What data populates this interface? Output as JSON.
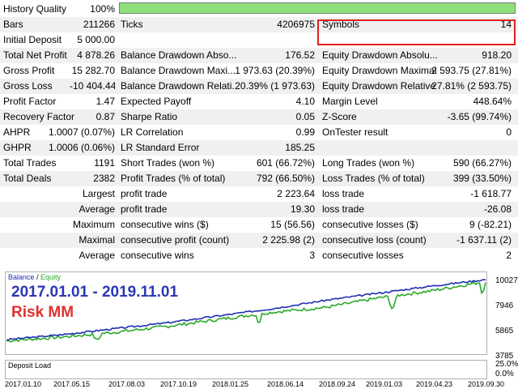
{
  "history_quality": {
    "label": "History Quality",
    "value": "100%",
    "fill": 1.0
  },
  "rows": [
    {
      "c": [
        "Bars",
        "211266",
        "Ticks",
        "4206975",
        "Symbols",
        "14"
      ]
    },
    {
      "c": [
        "Initial Deposit",
        "5 000.00",
        "",
        "",
        "",
        ""
      ]
    },
    {
      "c": [
        "Total Net Profit",
        "4 878.26",
        "Balance Drawdown Abso...",
        "176.52",
        "Equity Drawdown Absolu...",
        "918.20"
      ]
    },
    {
      "c": [
        "Gross Profit",
        "15 282.70",
        "Balance Drawdown Maxi...",
        "1 973.63 (20.39%)",
        "Equity Drawdown Maximal",
        "2 593.75 (27.81%)"
      ]
    },
    {
      "c": [
        "Gross Loss",
        "-10 404.44",
        "Balance Drawdown Relati...",
        "20.39% (1 973.63)",
        "Equity Drawdown Relative",
        "27.81% (2 593.75)"
      ]
    },
    {
      "c": [
        "Profit Factor",
        "1.47",
        "Expected Payoff",
        "4.10",
        "Margin Level",
        "448.64%"
      ]
    },
    {
      "c": [
        "Recovery Factor",
        "0.87",
        "Sharpe Ratio",
        "0.05",
        "Z-Score",
        "-3.65 (99.74%)"
      ]
    },
    {
      "c": [
        "AHPR",
        "1.0007 (0.07%)",
        "LR Correlation",
        "0.99",
        "OnTester result",
        "0"
      ]
    },
    {
      "c": [
        "GHPR",
        "1.0006 (0.06%)",
        "LR Standard Error",
        "185.25",
        "",
        ""
      ]
    },
    {
      "c": [
        "Total Trades",
        "1191",
        "Short Trades (won %)",
        "601 (66.72%)",
        "Long Trades (won %)",
        "590 (66.27%)"
      ]
    },
    {
      "c": [
        "Total Deals",
        "2382",
        "Profit Trades (% of total)",
        "792 (66.50%)",
        "Loss Trades (% of total)",
        "399 (33.50%)"
      ]
    },
    {
      "c": [
        "Largest",
        "",
        "profit trade",
        "2 223.64",
        "loss trade",
        "-1 618.77"
      ]
    },
    {
      "c": [
        "Average",
        "",
        "profit trade",
        "19.30",
        "loss trade",
        "-26.08"
      ]
    },
    {
      "c": [
        "Maximum",
        "",
        "consecutive wins ($)",
        "15 (56.56)",
        "consecutive losses ($)",
        "9 (-82.21)"
      ]
    },
    {
      "c": [
        "Maximal",
        "",
        "consecutive profit (count)",
        "2 225.98 (2)",
        "consecutive loss (count)",
        "-1 637.11 (2)"
      ]
    },
    {
      "c": [
        "Average",
        "",
        "consecutive wins",
        "3",
        "consecutive losses",
        "2"
      ]
    }
  ],
  "chart": {
    "legend_balance": "Balance",
    "legend_sep": " / ",
    "legend_equity": "Equity",
    "overlay_period": "2017.01.01 - 2019.11.01",
    "overlay_mode": "Risk MM",
    "y_ticks": [
      "10027",
      "7946",
      "5865",
      "3785"
    ],
    "deposit_label": "Deposit Load",
    "deposit_ticks": [
      "25.0%",
      "0.0%"
    ],
    "x_ticks": [
      "2017.01.10",
      "2017.05.15",
      "2017.08.03",
      "2017.10.19",
      "2018.01.25",
      "2018.06.14",
      "2018.09.24",
      "2019.01.03",
      "2019.04.23",
      "2019.09.30"
    ],
    "colors": {
      "balance": "#1f2fb0",
      "equity": "#2aa82a",
      "deposit": "#2aa82a",
      "period": "#2a38b4",
      "mode": "#e03030"
    }
  },
  "chart_data": {
    "type": "line",
    "x": [
      "2017.01.10",
      "2017.05.15",
      "2017.08.03",
      "2017.10.19",
      "2018.01.25",
      "2018.06.14",
      "2018.09.24",
      "2019.01.03",
      "2019.04.23",
      "2019.09.30"
    ],
    "series": [
      {
        "name": "Balance",
        "values": [
          5000,
          5400,
          5900,
          6400,
          7000,
          7600,
          8300,
          8900,
          9500,
          10027
        ]
      },
      {
        "name": "Equity",
        "values": [
          4900,
          5200,
          5600,
          6100,
          6700,
          7300,
          7700,
          8500,
          9100,
          9878
        ]
      }
    ],
    "ylim": [
      3785,
      10027
    ],
    "y_ticks": [
      3785,
      5865,
      7946,
      10027
    ]
  }
}
